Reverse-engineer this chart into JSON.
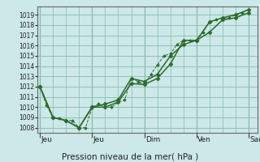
{
  "bg_color": "#cce8e8",
  "grid_color": "#88bbaa",
  "line_color": "#2d6a2d",
  "marker_color": "#2d6a2d",
  "xlabel": "Pression niveau de la mer( hPa )",
  "ylim": [
    1007.5,
    1019.8
  ],
  "yticks": [
    1008,
    1009,
    1010,
    1011,
    1012,
    1013,
    1014,
    1015,
    1016,
    1017,
    1018,
    1019
  ],
  "xlim": [
    -1,
    100
  ],
  "x_day_ticks": [
    0,
    24,
    48,
    72,
    96
  ],
  "x_day_labels": [
    "Jeu",
    "Dim",
    "Ven",
    "Sam"
  ],
  "series1": {
    "x": [
      0,
      3,
      6,
      9,
      12,
      15,
      18,
      21,
      24,
      27,
      30,
      33,
      36,
      39,
      42,
      45,
      48,
      51,
      54,
      57,
      60,
      63,
      66,
      69,
      72,
      75,
      78,
      81,
      84,
      87,
      90,
      93,
      96
    ],
    "y": [
      1012.0,
      1010.2,
      1009.0,
      1008.9,
      1008.7,
      1008.7,
      1008.0,
      1008.0,
      1010.0,
      1010.3,
      1010.0,
      1010.0,
      1010.5,
      1010.7,
      1012.8,
      1012.5,
      1012.2,
      1013.2,
      1014.1,
      1015.0,
      1015.2,
      1016.1,
      1016.5,
      1016.5,
      1016.5,
      1017.3,
      1018.3,
      1018.5,
      1018.7,
      1018.7,
      1019.0,
      1019.2,
      1019.5
    ]
  },
  "series2": {
    "x": [
      0,
      6,
      12,
      18,
      24,
      30,
      36,
      42,
      48,
      54,
      60,
      66,
      72,
      78,
      84,
      90,
      96
    ],
    "y": [
      1012.0,
      1009.0,
      1008.7,
      1008.0,
      1010.0,
      1010.0,
      1010.5,
      1012.3,
      1012.2,
      1012.8,
      1014.2,
      1016.5,
      1016.5,
      1018.3,
      1018.7,
      1019.0,
      1019.5
    ]
  },
  "series3": {
    "x": [
      0,
      6,
      12,
      18,
      24,
      30,
      36,
      42,
      48,
      54,
      60,
      66,
      72,
      78,
      84,
      90,
      96
    ],
    "y": [
      1012.0,
      1009.0,
      1008.7,
      1008.0,
      1010.0,
      1010.3,
      1010.7,
      1012.8,
      1012.5,
      1013.2,
      1015.0,
      1016.1,
      1016.5,
      1017.3,
      1018.5,
      1018.7,
      1019.2
    ]
  }
}
